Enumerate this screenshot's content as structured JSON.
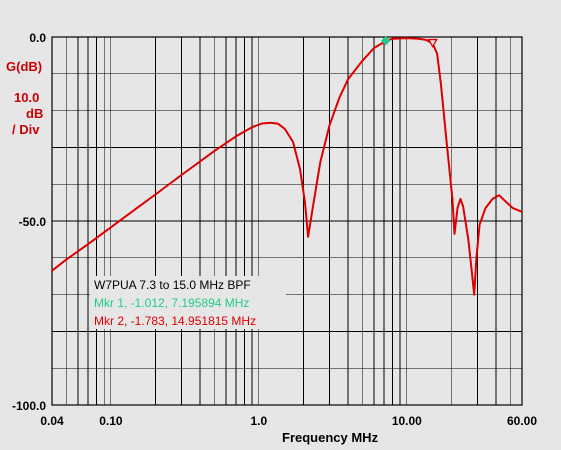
{
  "chart_data": {
    "type": "line",
    "title": "W7PUA 7.3 to 15.0 MHz BPF",
    "xlabel": "Frequency MHz",
    "ylabel": "G(dB)",
    "y_scale_text": [
      "10.0",
      "dB",
      "/ Div"
    ],
    "x_scale": "log",
    "xlim": [
      0.04,
      60.0
    ],
    "ylim": [
      -100.0,
      0.0
    ],
    "grid": true,
    "x_tick_labels": [
      {
        "value": 0.04,
        "label": "0.04"
      },
      {
        "value": 0.1,
        "label": "0.10"
      },
      {
        "value": 1.0,
        "label": "1.0"
      },
      {
        "value": 10.0,
        "label": "10.00"
      },
      {
        "value": 60.0,
        "label": "60.00"
      }
    ],
    "y_tick_labels": [
      {
        "value": 0.0,
        "label": "0.0"
      },
      {
        "value": -50.0,
        "label": "-50.0"
      },
      {
        "value": -100.0,
        "label": "-100.0"
      }
    ],
    "series": [
      {
        "color": "#dd0000",
        "points": [
          [
            0.04,
            -63.5
          ],
          [
            0.05,
            -60.5
          ],
          [
            0.07,
            -56.3
          ],
          [
            0.1,
            -51.7
          ],
          [
            0.15,
            -46.5
          ],
          [
            0.2,
            -42.8
          ],
          [
            0.3,
            -37.5
          ],
          [
            0.5,
            -31.0
          ],
          [
            0.7,
            -27.0
          ],
          [
            0.9,
            -24.5
          ],
          [
            1.05,
            -23.5
          ],
          [
            1.2,
            -23.3
          ],
          [
            1.35,
            -23.6
          ],
          [
            1.5,
            -25.0
          ],
          [
            1.7,
            -28.5
          ],
          [
            1.9,
            -36.0
          ],
          [
            2.05,
            -45.0
          ],
          [
            2.15,
            -54.3
          ],
          [
            2.3,
            -47.0
          ],
          [
            2.6,
            -34.0
          ],
          [
            3.0,
            -24.0
          ],
          [
            3.5,
            -16.5
          ],
          [
            4.0,
            -11.5
          ],
          [
            5.0,
            -6.5
          ],
          [
            6.0,
            -3.0
          ],
          [
            6.8,
            -1.7
          ],
          [
            7.2,
            -1.0
          ],
          [
            8.0,
            -0.5
          ],
          [
            10.0,
            -0.3
          ],
          [
            12.0,
            -0.5
          ],
          [
            13.5,
            -0.8
          ],
          [
            14.95,
            -1.8
          ],
          [
            16.0,
            -4.5
          ],
          [
            17.0,
            -13.0
          ],
          [
            18.5,
            -28.0
          ],
          [
            19.5,
            -37.0
          ],
          [
            20.3,
            -44.0
          ],
          [
            21.0,
            -53.5
          ],
          [
            22.0,
            -46.5
          ],
          [
            23.0,
            -44.0
          ],
          [
            24.0,
            -46.0
          ],
          [
            26.0,
            -55.0
          ],
          [
            27.5,
            -64.0
          ],
          [
            28.5,
            -70.0
          ],
          [
            29.5,
            -60.0
          ],
          [
            31.0,
            -51.0
          ],
          [
            34.0,
            -46.5
          ],
          [
            38.0,
            -44.0
          ],
          [
            42.0,
            -43.0
          ],
          [
            46.0,
            -44.5
          ],
          [
            52.0,
            -46.5
          ],
          [
            60.0,
            -47.5
          ]
        ]
      }
    ],
    "markers": [
      {
        "x": 7.195894,
        "y": -1.012,
        "color": "#22cc88",
        "shape": "diamond",
        "label": "Mkr 1, -1.012, 7.195894 MHz"
      },
      {
        "x": 14.951815,
        "y": -1.783,
        "color": "#dd0000",
        "shape": "triangle",
        "label": "Mkr 2, -1.783, 14.951815 MHz"
      }
    ]
  }
}
